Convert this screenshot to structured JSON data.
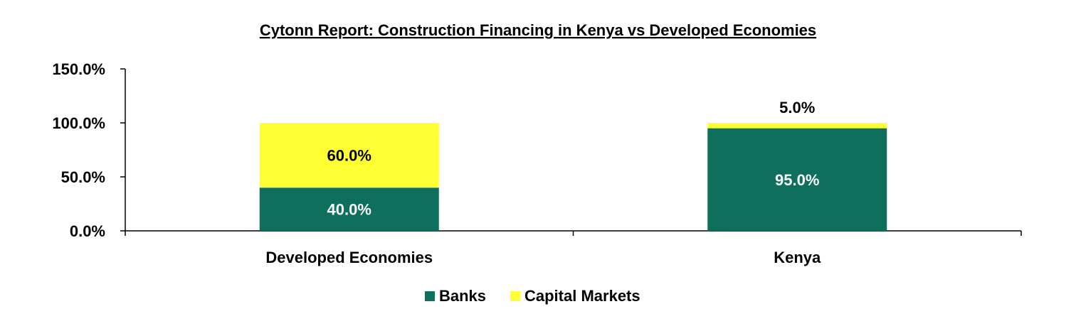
{
  "chart_data": {
    "type": "bar",
    "stacked": true,
    "title": "Cytonn Report: Construction Financing in Kenya vs Developed Economies",
    "categories": [
      "Developed Economies",
      "Kenya"
    ],
    "series": [
      {
        "name": "Banks",
        "values": [
          40.0,
          95.0
        ],
        "labels": [
          "40.0%",
          "95.0%"
        ],
        "color": "#0e6f5c",
        "label_color": "#ffffff"
      },
      {
        "name": "Capital Markets",
        "values": [
          60.0,
          5.0
        ],
        "labels": [
          "60.0%",
          "5.0%"
        ],
        "color": "#ffff33",
        "label_color": "#000000"
      }
    ],
    "ylim": [
      0,
      150
    ],
    "yticks": [
      0,
      50,
      100,
      150
    ],
    "ytick_labels": [
      "0.0%",
      "50.0%",
      "100.0%",
      "150.0%"
    ],
    "xlabel": "",
    "ylabel": "",
    "grid": false,
    "legend_position": "bottom"
  }
}
